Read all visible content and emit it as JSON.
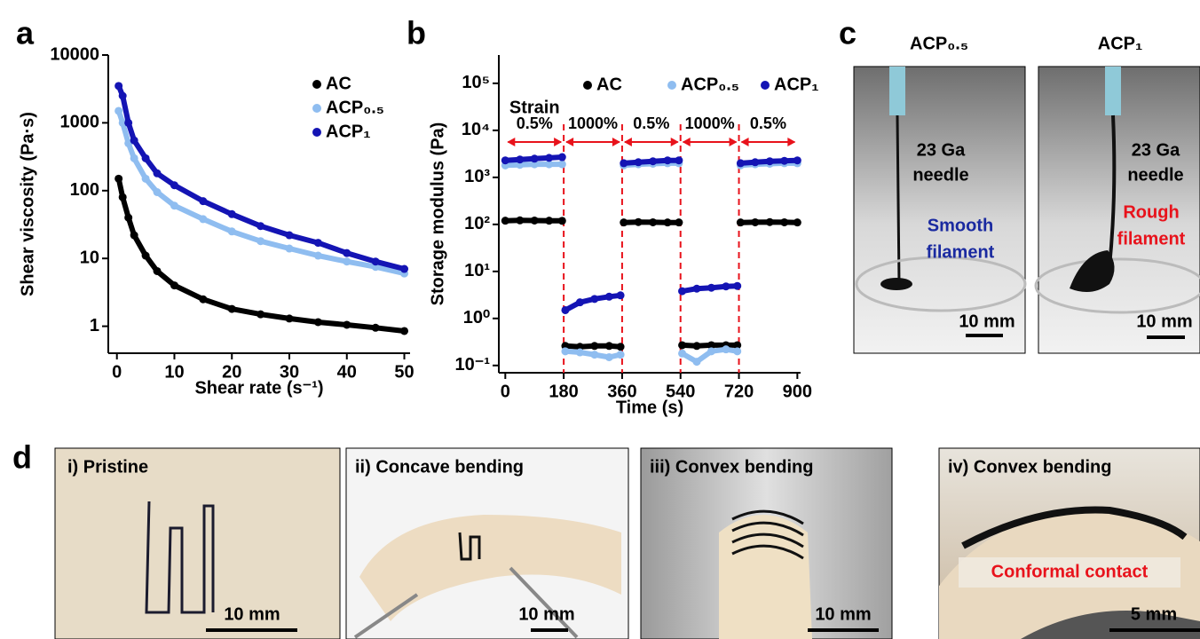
{
  "chart_data": [
    {
      "type": "scatter",
      "panel_label": "a",
      "x_label": "Shear rate (s⁻¹)",
      "y_label": "Shear viscosity (Pa·s)",
      "log_y": true,
      "legend": "upper right",
      "x": [
        0.3,
        1,
        2,
        3,
        5,
        7,
        10,
        15,
        20,
        25,
        30,
        35,
        40,
        45,
        50
      ],
      "series": [
        {
          "name": "AC",
          "color": "#000000",
          "values": [
            150,
            80,
            40,
            22,
            11,
            6.5,
            4,
            2.5,
            1.8,
            1.5,
            1.3,
            1.15,
            1.05,
            0.95,
            0.85
          ]
        },
        {
          "name": "ACP₀.₅",
          "color": "#8fbdf0",
          "values": [
            1500,
            1000,
            500,
            300,
            150,
            95,
            60,
            38,
            25,
            18,
            14,
            11,
            9,
            7.5,
            6
          ]
        },
        {
          "name": "ACP₁",
          "color": "#1414b4",
          "values": [
            3500,
            2500,
            1000,
            550,
            300,
            180,
            120,
            70,
            45,
            30,
            22,
            17,
            12,
            9,
            7
          ]
        }
      ],
      "xlim": [
        -1.5,
        51
      ],
      "xticks": [
        0,
        10,
        20,
        30,
        40,
        50
      ],
      "ylim": [
        0.4,
        10000
      ],
      "yticks": [
        1,
        10,
        100,
        1000,
        10000
      ]
    },
    {
      "type": "scatter",
      "panel_label": "b",
      "x_label": "Time (s)",
      "y_label": "Storage modulus (Pa)",
      "log_y": true,
      "legend": "top",
      "x": [
        0,
        45,
        90,
        135,
        175,
        180,
        185,
        230,
        275,
        320,
        355,
        360,
        365,
        410,
        455,
        500,
        535,
        540,
        545,
        590,
        635,
        680,
        715,
        720,
        725,
        770,
        815,
        860,
        900
      ],
      "series": [
        {
          "name": "AC",
          "color": "#000000",
          "values": [
            120,
            122,
            121,
            120,
            119,
            null,
            0.26,
            0.25,
            0.26,
            0.26,
            0.25,
            null,
            110,
            112,
            111,
            110,
            110,
            null,
            0.27,
            0.26,
            0.27,
            0.27,
            0.27,
            null,
            110,
            111,
            112,
            111,
            110
          ]
        },
        {
          "name": "ACP₀.₅",
          "color": "#8fbdf0",
          "values": [
            1800,
            1850,
            1900,
            1900,
            1900,
            null,
            0.2,
            0.19,
            0.17,
            0.15,
            0.17,
            null,
            1800,
            1900,
            1950,
            2000,
            2000,
            null,
            0.18,
            0.12,
            0.2,
            0.22,
            0.2,
            null,
            1800,
            1900,
            1950,
            2000,
            2000
          ]
        },
        {
          "name": "ACP₁",
          "color": "#1414b4",
          "values": [
            2300,
            2400,
            2500,
            2600,
            2700,
            null,
            1.5,
            2.2,
            2.6,
            2.9,
            3.1,
            null,
            2000,
            2100,
            2200,
            2300,
            2300,
            null,
            3.8,
            4.3,
            4.5,
            4.8,
            4.9,
            null,
            2000,
            2100,
            2200,
            2250,
            2300
          ]
        }
      ],
      "annotations": {
        "strain_label": "Strain",
        "segments": [
          {
            "label": "0.5%",
            "start": 0,
            "end": 180
          },
          {
            "label": "1000%",
            "start": 180,
            "end": 360
          },
          {
            "label": "0.5%",
            "start": 360,
            "end": 540
          },
          {
            "label": "1000%",
            "start": 540,
            "end": 720
          },
          {
            "label": "0.5%",
            "start": 720,
            "end": 900
          }
        ]
      },
      "xlim": [
        -20,
        910
      ],
      "xticks": [
        0,
        180,
        360,
        540,
        720,
        900
      ],
      "ylim": [
        0.07,
        400000
      ],
      "yticks": [
        {
          "value": 0.1,
          "label": "10⁻¹"
        },
        {
          "value": 1,
          "label": "10⁰"
        },
        {
          "value": 10,
          "label": "10¹"
        },
        {
          "value": 100,
          "label": "10²"
        },
        {
          "value": 1000,
          "label": "10³"
        },
        {
          "value": 10000,
          "label": "10⁴"
        },
        {
          "value": 100000,
          "label": "10⁵"
        }
      ]
    }
  ],
  "panel_c": {
    "panel_label": "c",
    "photos": [
      {
        "title": "ACP₀.₅",
        "needle": [
          "23 Ga",
          "needle"
        ],
        "filament": [
          "Smooth",
          "filament"
        ],
        "scale": "10 mm"
      },
      {
        "title": "ACP₁",
        "needle": [
          "23 Ga",
          "needle"
        ],
        "filament": [
          "Rough",
          "filament"
        ],
        "scale": "10 mm"
      }
    ]
  },
  "panel_d": {
    "panel_label": "d",
    "photos": [
      {
        "caption": "i) Pristine",
        "scale": "10 mm"
      },
      {
        "caption": "ii) Concave bending",
        "scale": "10 mm"
      },
      {
        "caption": "iii) Convex bending",
        "scale": "10 mm"
      },
      {
        "caption": "iv) Convex bending",
        "scale": "5 mm",
        "note": "Conformal contact"
      }
    ]
  }
}
